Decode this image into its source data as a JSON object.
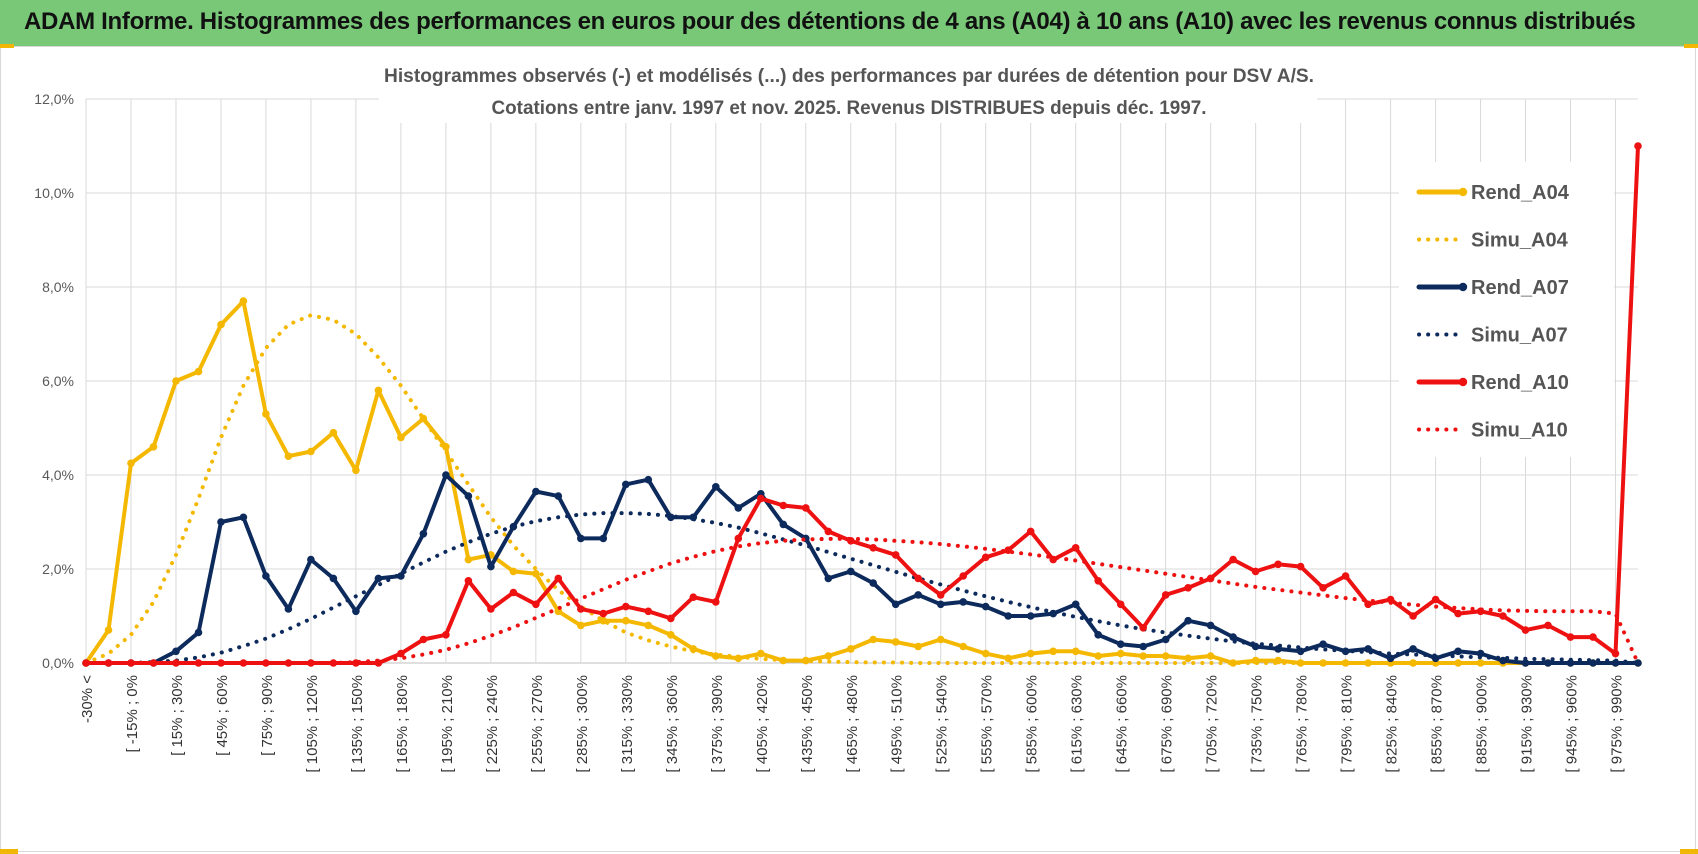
{
  "banner": {
    "title": "ADAM Informe. Histogrammes des performances en euros pour des détentions de 4 ans (A04) à 10 ans (A10) avec les revenus connus distribués"
  },
  "colors": {
    "banner_bg": "#78c878",
    "A04": "#f5b800",
    "A07": "#0d2a5c",
    "A10": "#ee1111",
    "grid": "#d9d9d9"
  },
  "chart_data": {
    "type": "line",
    "title_line1": "Histogrammes observés (-) et modélisés (...) des performances par durées de détention pour DSV A/S.",
    "title_line2": "Cotations entre janv. 1997 et nov. 2025. Revenus DISTRIBUES depuis déc. 1997.",
    "xlabel": "",
    "ylabel": "",
    "ylim": [
      0,
      12
    ],
    "y_ticks": [
      "0,0%",
      "2,0%",
      "4,0%",
      "6,0%",
      "8,0%",
      "10,0%",
      "12,0%"
    ],
    "grid": true,
    "legend_position": "right",
    "category_labels": [
      "-30% <",
      "[ -15% ; 0%",
      "[ 15% ; 30%",
      "[ 45% ; 60%",
      "[ 75% ; 90%",
      "[ 105% ; 120%",
      "[ 135% ; 150%",
      "[ 165% ; 180%",
      "[ 195% ; 210%",
      "[ 225% ; 240%",
      "[ 255% ; 270%",
      "[ 285% ; 300%",
      "[ 315% ; 330%",
      "[ 345% ; 360%",
      "[ 375% ; 390%",
      "[ 405% ; 420%",
      "[ 435% ; 450%",
      "[ 465% ; 480%",
      "[ 495% ; 510%",
      "[ 525% ; 540%",
      "[ 555% ; 570%",
      "[ 585% ; 600%",
      "[ 615% ; 630%",
      "[ 645% ; 660%",
      "[ 675% ; 690%",
      "[ 705% ; 720%",
      "[ 735% ; 750%",
      "[ 765% ; 780%",
      "[ 795% ; 810%",
      "[ 825% ; 840%",
      "[ 855% ; 870%",
      "[ 885% ; 900%",
      "[ 915% ; 930%",
      "[ 945% ; 960%",
      "[ 975% ; 990%"
    ],
    "series": [
      {
        "name": "Rend_A04",
        "style": "solid",
        "color": "#f5b800",
        "values": [
          0.0,
          0.7,
          4.25,
          4.6,
          6.0,
          6.2,
          7.2,
          7.7,
          5.3,
          4.4,
          4.5,
          4.9,
          4.1,
          5.8,
          4.8,
          5.2,
          4.6,
          2.2,
          2.3,
          1.95,
          1.9,
          1.1,
          0.8,
          0.9,
          0.9,
          0.8,
          0.6,
          0.3,
          0.15,
          0.1,
          0.2,
          0.05,
          0.05,
          0.15,
          0.3,
          0.5,
          0.45,
          0.35,
          0.5,
          0.35,
          0.2,
          0.1,
          0.2,
          0.25,
          0.25,
          0.15,
          0.2,
          0.15,
          0.15,
          0.1,
          0.15,
          0.0,
          0.05,
          0.05,
          0.0,
          0.0,
          0.0,
          0.0,
          0.0,
          0.0,
          0.0,
          0.0,
          0.0,
          0.0,
          0.0,
          0.0,
          0.0,
          0.0,
          0.0,
          0.0
        ]
      },
      {
        "name": "Simu_A04",
        "style": "dotted",
        "color": "#f5b800",
        "values": [
          0.0,
          0.2,
          0.6,
          1.3,
          2.3,
          3.5,
          4.8,
          5.9,
          6.7,
          7.2,
          7.4,
          7.3,
          7.0,
          6.5,
          5.9,
          5.2,
          4.5,
          3.8,
          3.1,
          2.5,
          2.0,
          1.55,
          1.2,
          0.9,
          0.65,
          0.48,
          0.35,
          0.25,
          0.18,
          0.13,
          0.09,
          0.06,
          0.04,
          0.03,
          0.02,
          0.01,
          0.01,
          0.0,
          0.0,
          0.0,
          0.0,
          0.0,
          0.0,
          0.0,
          0.0,
          0.0,
          0.0,
          0.0,
          0.0,
          0.0,
          0.0,
          0.0,
          0.0,
          0.0,
          0.0,
          0.0,
          0.0,
          0.0,
          0.0,
          0.0,
          0.0,
          0.0,
          0.0,
          0.0,
          0.0,
          0.0,
          0.0,
          0.0,
          0.0,
          0.0
        ]
      },
      {
        "name": "Rend_A07",
        "style": "solid",
        "color": "#0d2a5c",
        "values": [
          0.0,
          0.0,
          0.0,
          0.0,
          0.25,
          0.65,
          3.0,
          3.1,
          1.85,
          1.15,
          2.2,
          1.8,
          1.1,
          1.8,
          1.85,
          2.75,
          4.0,
          3.55,
          2.05,
          2.9,
          3.65,
          3.55,
          2.65,
          2.65,
          3.8,
          3.9,
          3.1,
          3.1,
          3.75,
          3.3,
          3.6,
          2.95,
          2.65,
          1.8,
          1.95,
          1.7,
          1.25,
          1.45,
          1.25,
          1.3,
          1.2,
          1.0,
          1.0,
          1.05,
          1.25,
          0.6,
          0.4,
          0.35,
          0.5,
          0.9,
          0.8,
          0.55,
          0.35,
          0.3,
          0.25,
          0.4,
          0.25,
          0.3,
          0.1,
          0.3,
          0.1,
          0.25,
          0.2,
          0.05,
          0.0,
          0.0,
          0.0,
          0.0,
          0.0,
          0.0
        ]
      },
      {
        "name": "Simu_A07",
        "style": "dotted",
        "color": "#0d2a5c",
        "values": [
          0.0,
          0.0,
          0.0,
          0.02,
          0.05,
          0.12,
          0.22,
          0.36,
          0.52,
          0.72,
          0.94,
          1.18,
          1.42,
          1.66,
          1.9,
          2.14,
          2.37,
          2.57,
          2.75,
          2.9,
          3.02,
          3.1,
          3.16,
          3.19,
          3.19,
          3.17,
          3.13,
          3.06,
          2.98,
          2.88,
          2.76,
          2.63,
          2.5,
          2.36,
          2.22,
          2.08,
          1.94,
          1.8,
          1.67,
          1.54,
          1.42,
          1.3,
          1.19,
          1.08,
          0.98,
          0.89,
          0.8,
          0.72,
          0.65,
          0.58,
          0.52,
          0.46,
          0.41,
          0.37,
          0.33,
          0.29,
          0.26,
          0.23,
          0.2,
          0.18,
          0.16,
          0.14,
          0.12,
          0.11,
          0.09,
          0.08,
          0.07,
          0.06,
          0.05,
          0.0
        ]
      },
      {
        "name": "Rend_A10",
        "style": "solid",
        "color": "#ee1111",
        "values": [
          0.0,
          0.0,
          0.0,
          0.0,
          0.0,
          0.0,
          0.0,
          0.0,
          0.0,
          0.0,
          0.0,
          0.0,
          0.0,
          0.0,
          0.2,
          0.5,
          0.6,
          1.75,
          1.15,
          1.5,
          1.25,
          1.8,
          1.15,
          1.05,
          1.2,
          1.1,
          0.95,
          1.4,
          1.3,
          2.65,
          3.5,
          3.35,
          3.3,
          2.8,
          2.6,
          2.45,
          2.3,
          1.8,
          1.45,
          1.85,
          2.25,
          2.4,
          2.8,
          2.2,
          2.45,
          1.75,
          1.25,
          0.75,
          1.45,
          1.6,
          1.8,
          2.2,
          1.95,
          2.1,
          2.05,
          1.6,
          1.85,
          1.25,
          1.35,
          1.0,
          1.35,
          1.05,
          1.1,
          1.0,
          0.7,
          0.8,
          0.55,
          0.55,
          0.2,
          11.0
        ]
      },
      {
        "name": "Simu_A10",
        "style": "dotted",
        "color": "#ee1111",
        "values": [
          0.0,
          0.0,
          0.0,
          0.0,
          0.0,
          0.0,
          0.0,
          0.0,
          0.0,
          0.0,
          0.0,
          0.0,
          0.02,
          0.05,
          0.1,
          0.18,
          0.28,
          0.42,
          0.58,
          0.76,
          0.96,
          1.16,
          1.37,
          1.57,
          1.77,
          1.95,
          2.12,
          2.26,
          2.38,
          2.48,
          2.55,
          2.6,
          2.63,
          2.64,
          2.64,
          2.63,
          2.6,
          2.57,
          2.53,
          2.48,
          2.43,
          2.37,
          2.31,
          2.25,
          2.18,
          2.11,
          2.04,
          1.97,
          1.9,
          1.83,
          1.76,
          1.69,
          1.62,
          1.56,
          1.5,
          1.44,
          1.38,
          1.33,
          1.28,
          1.24,
          1.2,
          1.17,
          1.14,
          1.12,
          1.11,
          1.1,
          1.1,
          1.1,
          1.05,
          0.0
        ]
      }
    ]
  }
}
